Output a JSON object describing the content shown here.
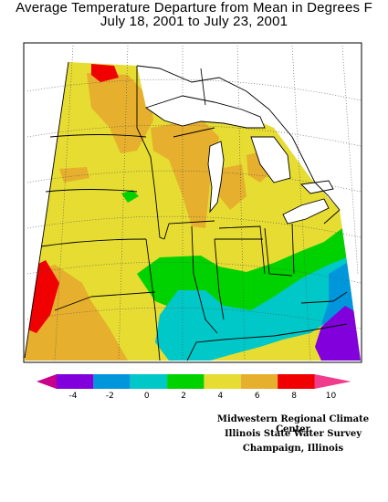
{
  "title": {
    "line1": "Average Temperature Departure from Mean in Degrees F",
    "line2": "July 18, 2001 to July 23, 2001"
  },
  "legend": {
    "tick_labels": [
      "-4",
      "-2",
      "0",
      "2",
      "4",
      "6",
      "8",
      "10"
    ],
    "colors": [
      "#c8008c",
      "#8200dc",
      "#0096dc",
      "#00c8c8",
      "#00d200",
      "#e6dc32",
      "#e6af2d",
      "#f00000",
      "#f03c8c"
    ]
  },
  "colors": {
    "lt_-4": "#c8008c",
    "-4_-2": "#8200dc",
    "-2_0": "#0096dc",
    "0_2": "#00c8c8",
    "2_4": "#00d200",
    "4_6": "#e6dc32",
    "6_8": "#e6af2d",
    "8_10": "#f00000",
    "gt_10": "#f03c8c"
  },
  "credit": {
    "line1": "Midwestern Regional Climate Center",
    "line2": "Illinois State Water Survey",
    "line3": "Champaign, Illinois"
  }
}
